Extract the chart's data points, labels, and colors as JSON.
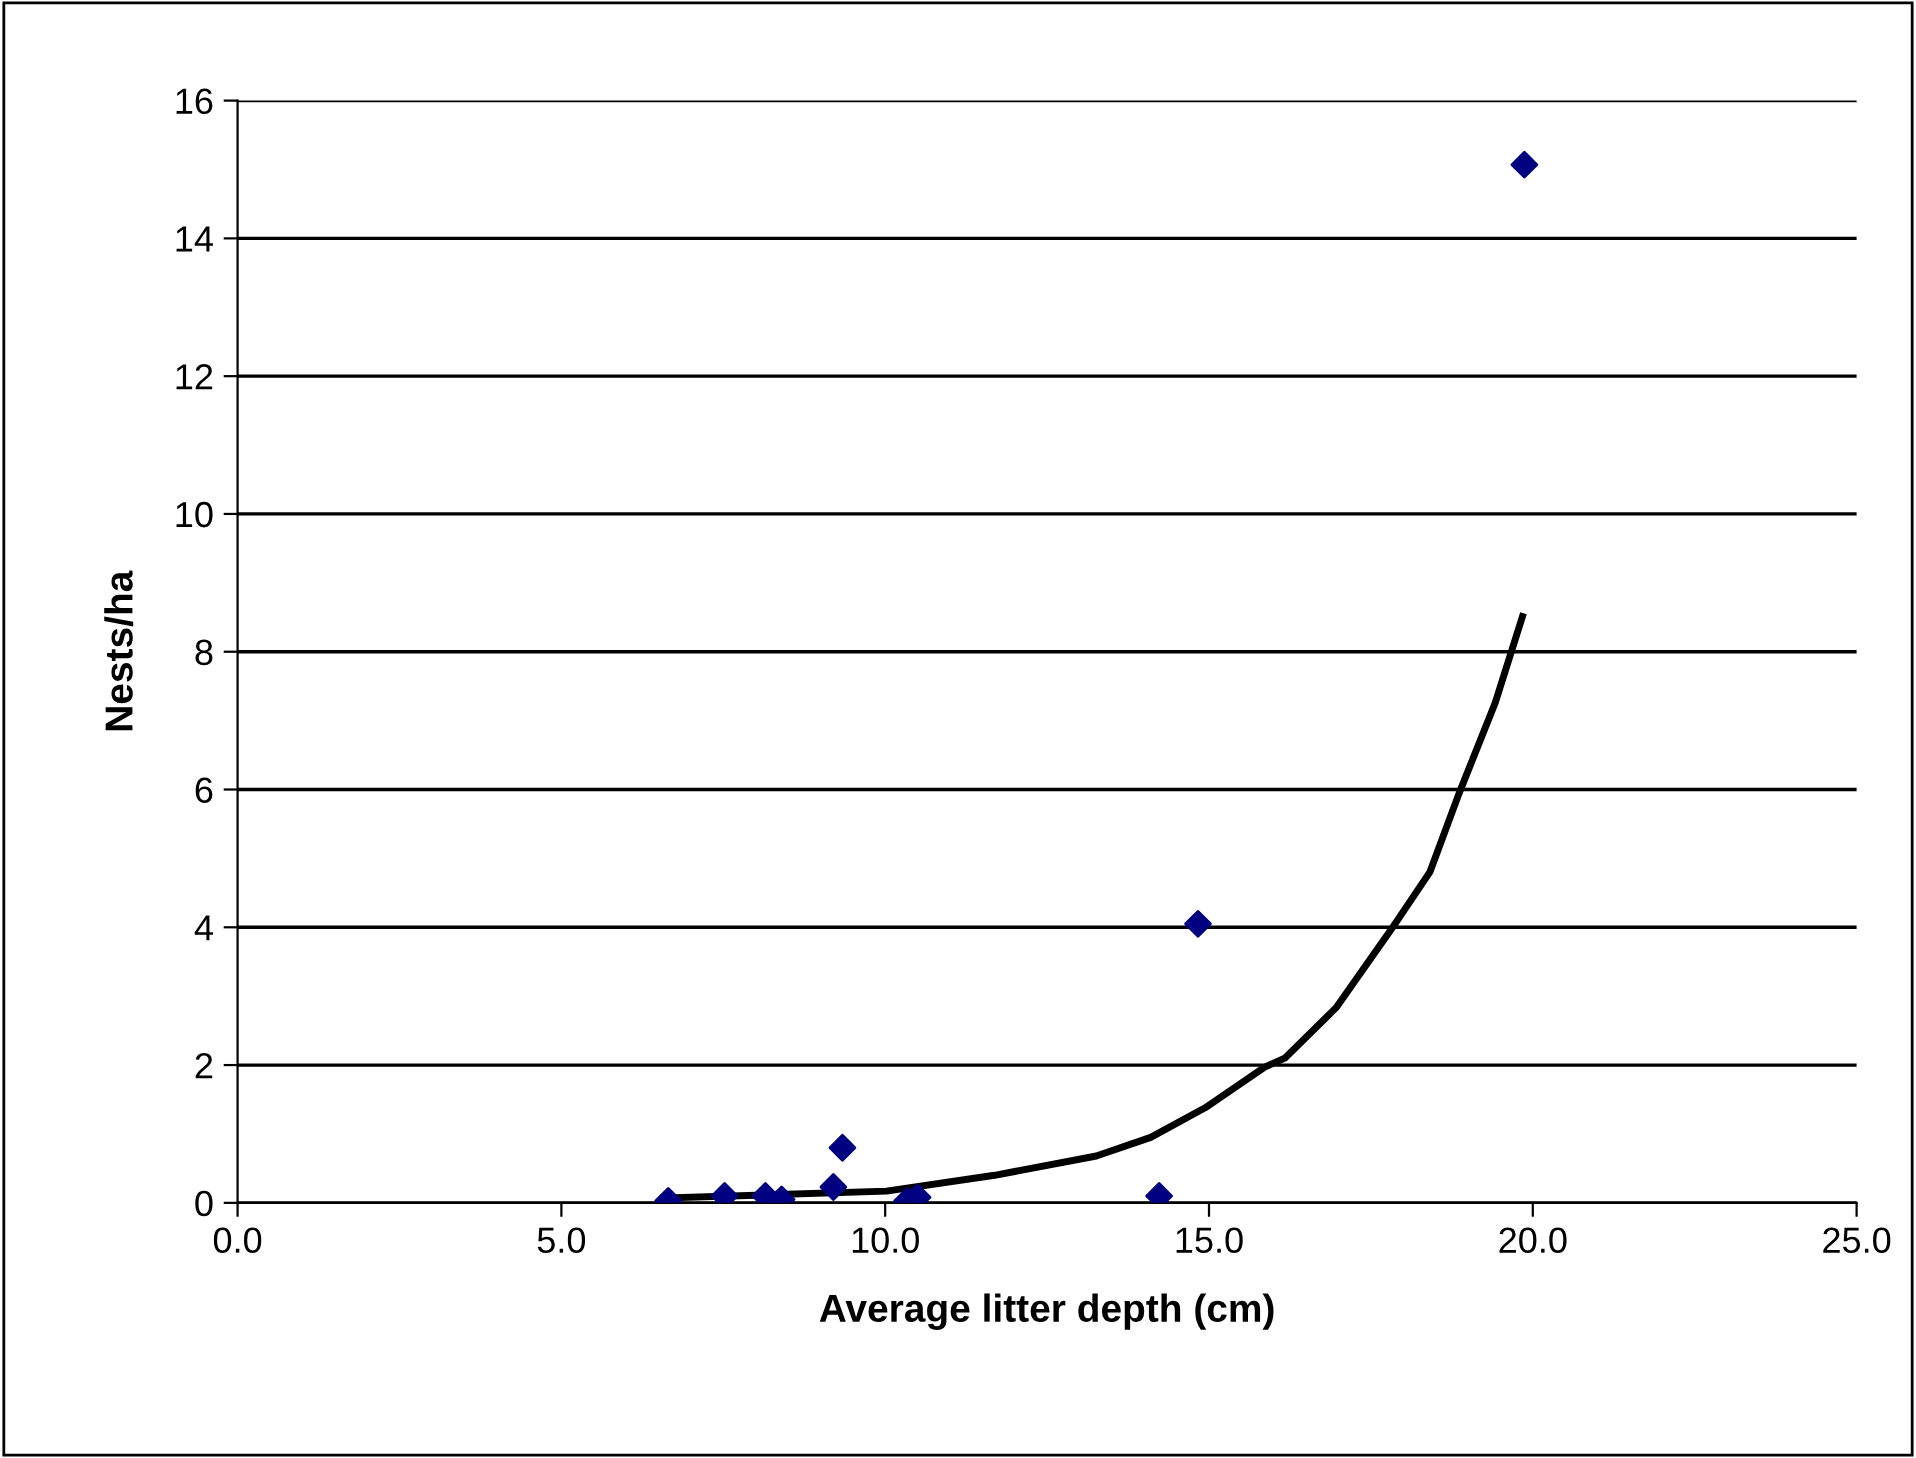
{
  "chart_data": {
    "type": "scatter",
    "xlabel": "Average litter depth (cm)",
    "ylabel": "Nests/ha",
    "xlim": [
      0,
      25
    ],
    "xticks": [
      {
        "value": 0,
        "label": "0.0"
      },
      {
        "value": 5,
        "label": "5.0"
      },
      {
        "value": 10,
        "label": "10.0"
      },
      {
        "value": 15,
        "label": "15.0"
      },
      {
        "value": 20,
        "label": "20.0"
      },
      {
        "value": 25,
        "label": "25.0"
      }
    ],
    "ylim": [
      0,
      16
    ],
    "yticks": [
      0,
      2,
      4,
      6,
      8,
      10,
      12,
      14,
      16
    ],
    "grid": "y",
    "legend": false,
    "series": [
      {
        "color": "#000080",
        "marker": "diamond",
        "x": [
          6.65,
          7.52,
          8.15,
          8.4,
          9.2,
          9.34,
          10.34,
          10.5,
          14.23,
          14.83,
          19.87
        ],
        "values": [
          0.03,
          0.1,
          0.1,
          0.05,
          0.23,
          0.8,
          0.03,
          0.08,
          0.1,
          4.05,
          15.07
        ]
      },
      {
        "type": "line",
        "color": "#000000",
        "marker": "none",
        "line_style": "solid",
        "x": [
          6.62,
          10.02,
          11.69,
          13.26,
          14.1,
          14.94,
          15.86,
          16.17,
          16.96,
          17.85,
          18.41,
          18.86,
          19.42,
          19.84
        ],
        "values": [
          0.07,
          0.17,
          0.4,
          0.68,
          0.95,
          1.38,
          1.97,
          2.1,
          2.83,
          4.02,
          4.8,
          5.94,
          7.26,
          8.51
        ]
      }
    ]
  }
}
